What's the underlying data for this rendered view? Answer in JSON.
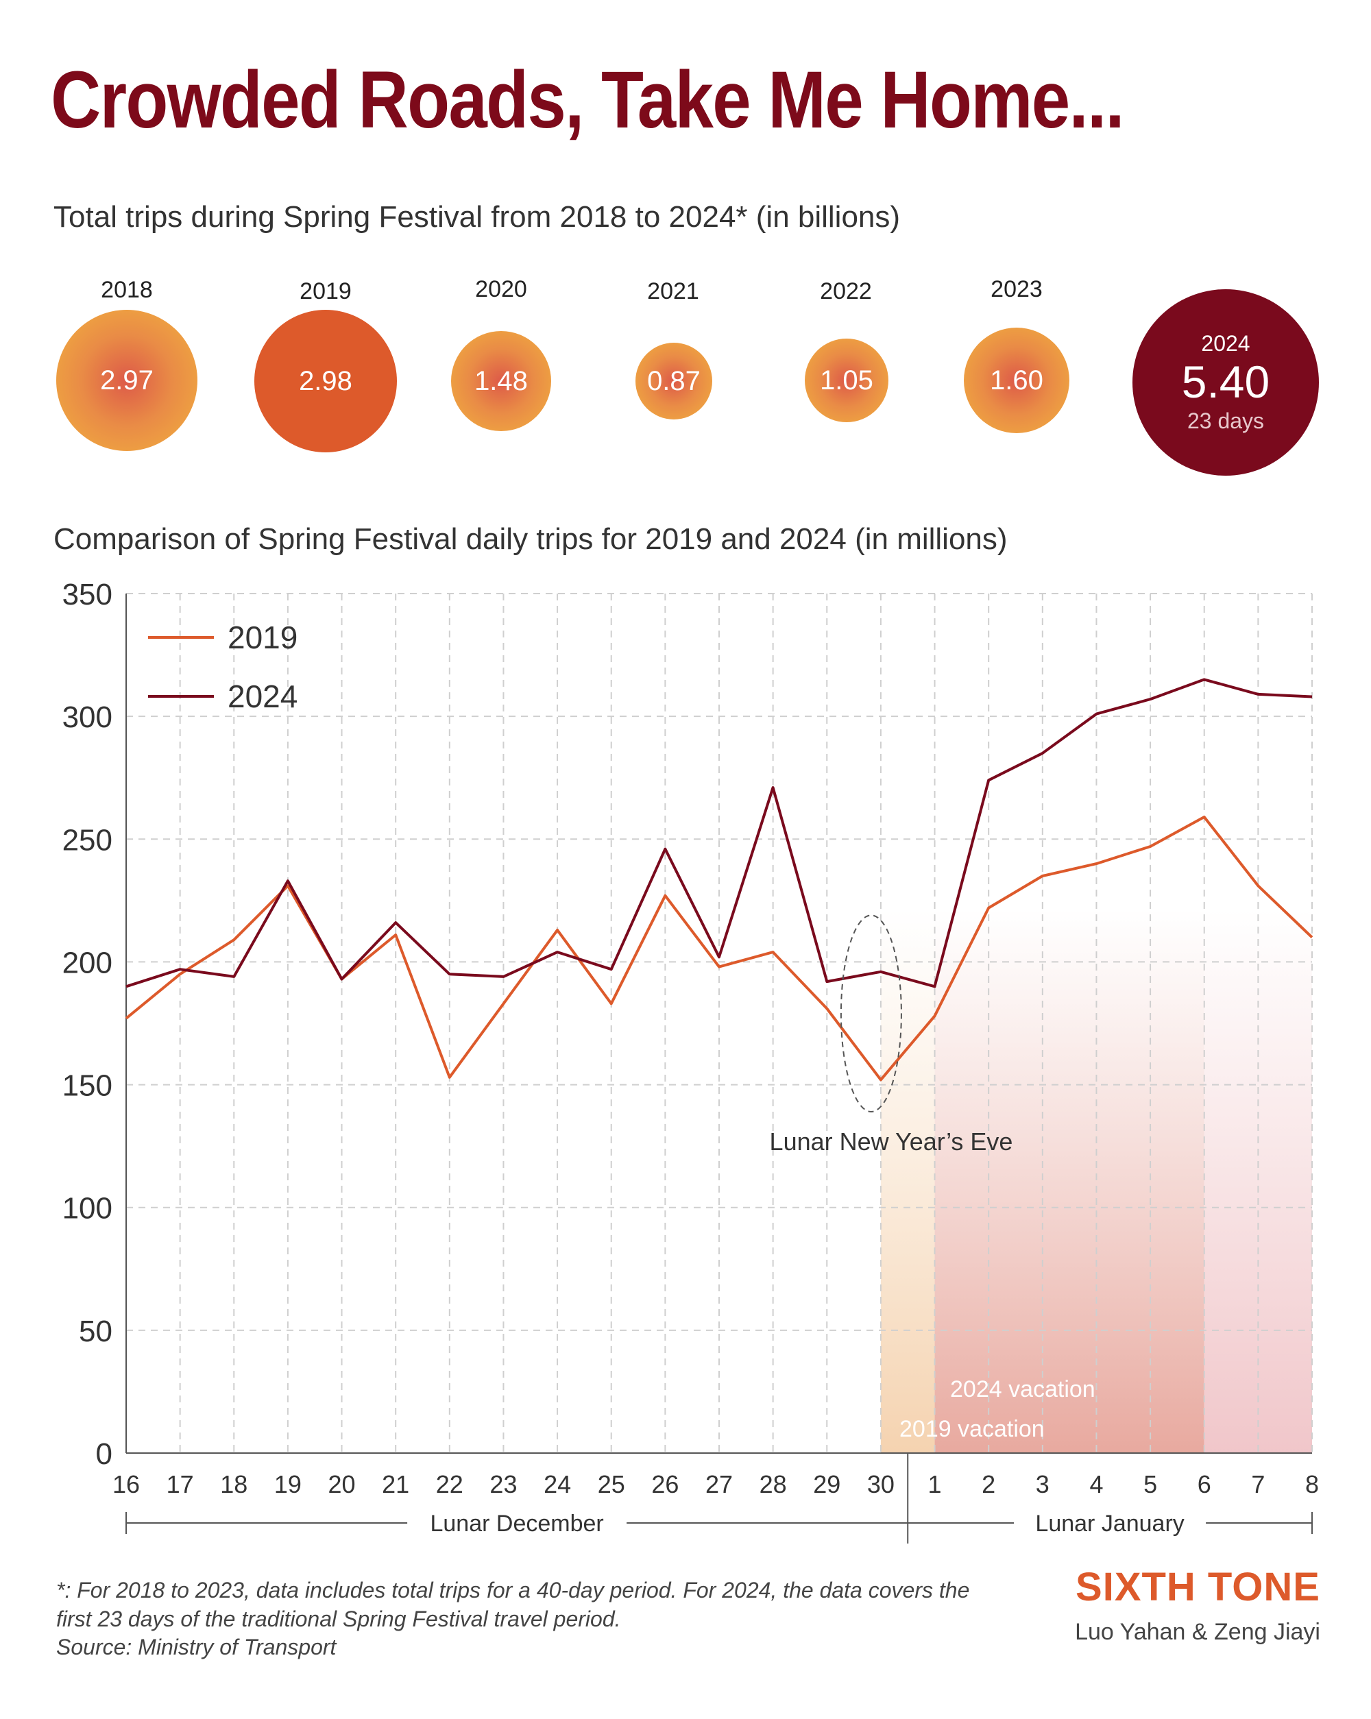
{
  "title": "Crowded Roads, Take Me Home...",
  "bubbles_title": "Total trips during Spring Festival from 2018 to 2024* (in billions)",
  "bubbles": [
    {
      "year": "2018",
      "value": "2.97"
    },
    {
      "year": "2019",
      "value": "2.98"
    },
    {
      "year": "2020",
      "value": "1.48"
    },
    {
      "year": "2021",
      "value": "0.87"
    },
    {
      "year": "2022",
      "value": "1.05"
    },
    {
      "year": "2023",
      "value": "1.60"
    },
    {
      "year": "2024",
      "value": "5.40",
      "note": "23 days"
    }
  ],
  "chart_title": "Comparison of Spring Festival daily trips for 2019 and 2024 (in millions)",
  "chart_data": {
    "type": "line",
    "x": [
      "16",
      "17",
      "18",
      "19",
      "20",
      "21",
      "22",
      "23",
      "24",
      "25",
      "26",
      "27",
      "28",
      "29",
      "30",
      "1",
      "2",
      "3",
      "4",
      "5",
      "6",
      "7",
      "8"
    ],
    "ylim": [
      0,
      350
    ],
    "yticks": [
      "0",
      "50",
      "100",
      "150",
      "200",
      "250",
      "300",
      "350"
    ],
    "series": [
      {
        "name": "2019",
        "color": "#dd5a2b",
        "values": [
          177,
          195,
          209,
          231,
          193,
          211,
          153,
          183,
          213,
          183,
          227,
          198,
          204,
          181,
          152,
          178,
          222,
          235,
          240,
          247,
          259,
          231,
          210
        ]
      },
      {
        "name": "2024",
        "color": "#7a0a1d",
        "values": [
          190,
          197,
          194,
          233,
          193,
          216,
          195,
          194,
          204,
          197,
          246,
          202,
          271,
          192,
          196,
          190,
          274,
          285,
          301,
          307,
          315,
          309,
          308
        ]
      }
    ],
    "groups": [
      {
        "label": "Lunar December"
      },
      {
        "label": "Lunar January"
      }
    ],
    "annotations": {
      "eve": "Lunar New Year’s Eve",
      "vacation_2024": "2024 vacation",
      "vacation_2019": "2019 vacation"
    },
    "grid": true,
    "legend": "top-left"
  },
  "footnote": [
    "*: For 2018 to 2023, data includes total trips for a 40-day period. For 2024, the data covers the",
    "first 23 days of the traditional Spring Festival travel period.",
    "Source: Ministry of Transport"
  ],
  "brand": "SIXTH TONE",
  "byline": "Luo Yahan & Zeng Jiayi"
}
